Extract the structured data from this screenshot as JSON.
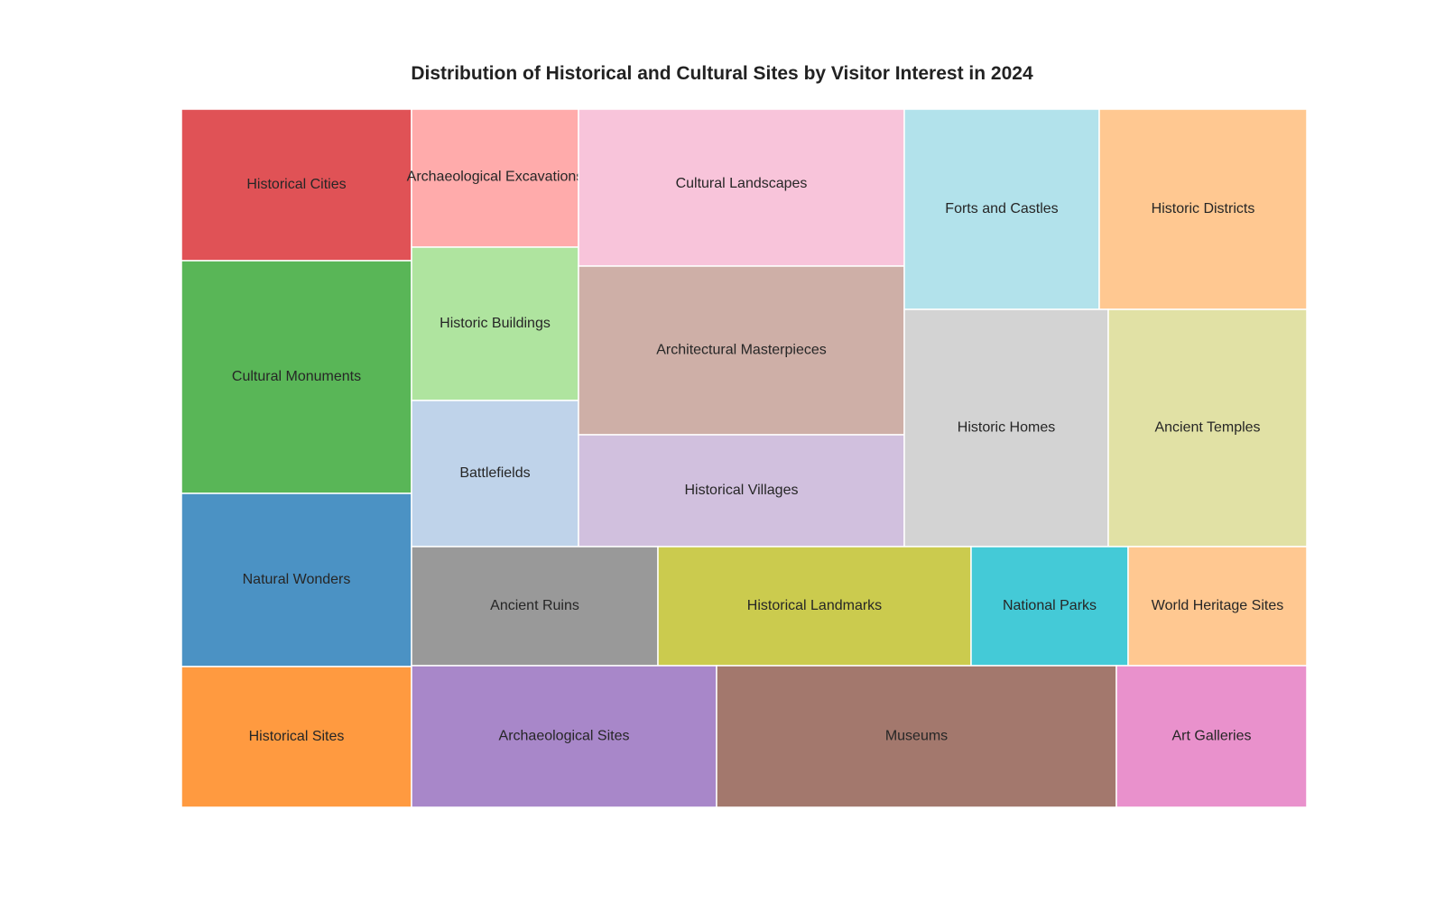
{
  "chart_data": {
    "type": "treemap",
    "title": "Distribution of Historical and Cultural Sites by Visitor Interest in 2024",
    "columns": [
      {
        "items": [
          {
            "label": "Historical Cities",
            "color": "#e05256"
          },
          {
            "label": "Cultural Monuments",
            "color": "#59b657"
          },
          {
            "label": "Natural Wonders",
            "color": "#4b92c4"
          },
          {
            "label": "Historical Sites",
            "color": "#ff9a40"
          }
        ]
      },
      {
        "items": [
          {
            "label": "Archaeological Excavations",
            "color": "#ffabab"
          },
          {
            "label": "Historic Buildings",
            "color": "#afe49f"
          },
          {
            "label": "Battlefields",
            "color": "#bfd3ea"
          }
        ]
      },
      {
        "items": [
          {
            "label": "Cultural Landscapes",
            "color": "#f8c4da"
          },
          {
            "label": "Architectural Masterpieces",
            "color": "#ceafa7"
          },
          {
            "label": "Historical Villages",
            "color": "#d1c0de"
          }
        ]
      },
      {
        "items": [
          {
            "label": "Forts and Castles",
            "color": "#b2e2eb"
          },
          {
            "label": "Historic Districts",
            "color": "#ffc891"
          },
          {
            "label": "Historic Homes",
            "color": "#d3d3d3"
          },
          {
            "label": "Ancient Temples",
            "color": "#e1e1a5"
          }
        ]
      },
      {
        "items": [
          {
            "label": "Ancient Ruins",
            "color": "#999999"
          },
          {
            "label": "Historical Landmarks",
            "color": "#cbcb4e"
          },
          {
            "label": "National Parks",
            "color": "#44cad7"
          },
          {
            "label": "World Heritage Sites",
            "color": "#ffc891"
          }
        ]
      },
      {
        "items": [
          {
            "label": "Archaeological Sites",
            "color": "#a887c9"
          },
          {
            "label": "Museums",
            "color": "#a3786d"
          },
          {
            "label": "Art Galleries",
            "color": "#e991cc"
          }
        ]
      }
    ],
    "grid": false,
    "legend": "none"
  }
}
